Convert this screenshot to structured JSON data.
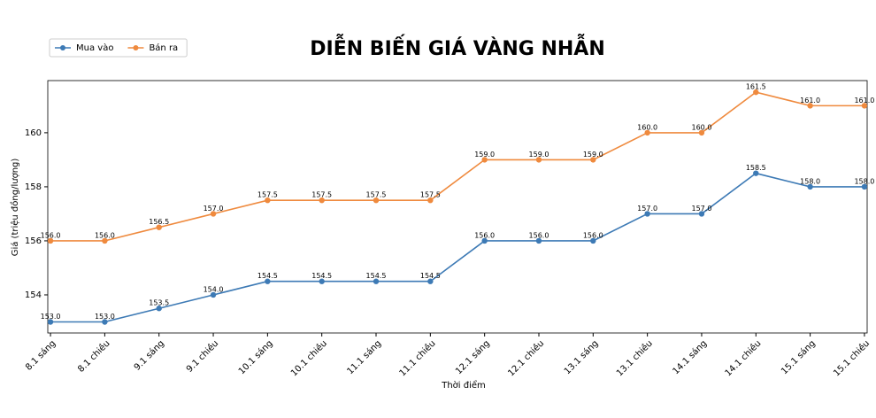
{
  "chart_data": {
    "type": "line",
    "title": "DIỄN BIẾN GIÁ VÀNG NHẪN",
    "x_label": "Thời điểm",
    "y_label": "Giá (triệu đồng/lượng)",
    "categories": [
      "8.1 sáng",
      "8.1 chiều",
      "9.1 sáng",
      "9.1 chiều",
      "10.1 sáng",
      "10.1 chiều",
      "11.1 sáng",
      "11.1 chiều",
      "12.1 sáng",
      "12.1 chiều",
      "13.1 sáng",
      "13.1 chiều",
      "14.1 sáng",
      "14.1 chiều",
      "15.1 sáng",
      "15.1 chiều"
    ],
    "series": [
      {
        "name": "Mua vào",
        "color": "#3d7ab5",
        "values": [
          153,
          153,
          153.5,
          154,
          154.5,
          154.5,
          154.5,
          154.5,
          156,
          156,
          156,
          157,
          157,
          158.5,
          158,
          158
        ],
        "value_labels": [
          "153.0",
          "153.0",
          "153.5",
          "154.0",
          "154.5",
          "154.5",
          "154.5",
          "154.5",
          "156.0",
          "156.0",
          "156.0",
          "157.0",
          "157.0",
          "158.5",
          "158.0",
          "158.0"
        ]
      },
      {
        "name": "Bán ra",
        "color": "#ef8a3e",
        "values": [
          156,
          156,
          156.5,
          157,
          157.5,
          157.5,
          157.5,
          157.5,
          159,
          159,
          159,
          160,
          160,
          161.5,
          161,
          161
        ],
        "value_labels": [
          "156.0",
          "156.0",
          "156.5",
          "157.0",
          "157.5",
          "157.5",
          "157.5",
          "157.5",
          "159.0",
          "159.0",
          "159.0",
          "160.0",
          "160.0",
          "161.5",
          "161.0",
          "161.0"
        ]
      }
    ],
    "ylim": [
      152.59,
      161.93
    ],
    "yticks": [
      154,
      156,
      158,
      160
    ],
    "legend": "upper left"
  }
}
